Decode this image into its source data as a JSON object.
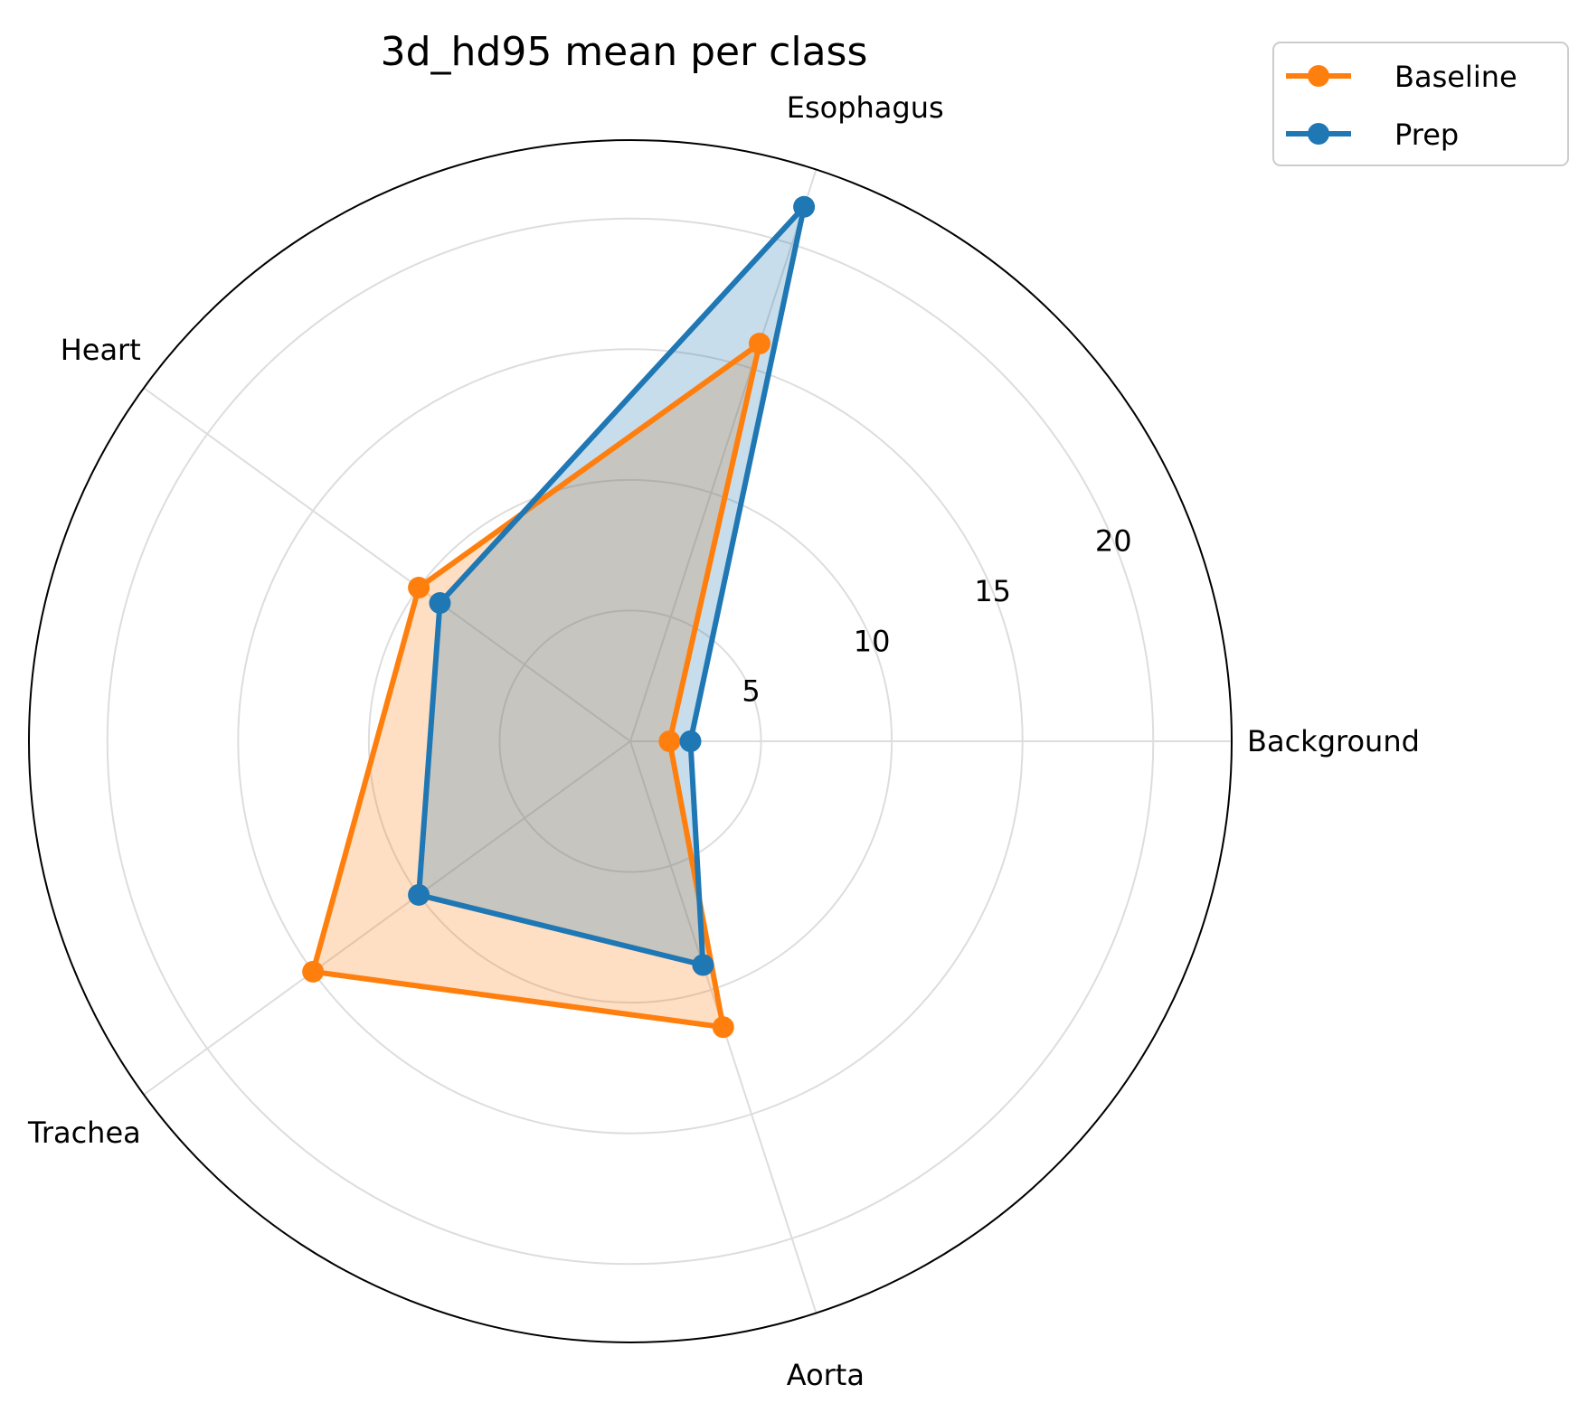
{
  "chart_data": {
    "type": "radar",
    "title": "3d_hd95 mean per class",
    "categories": [
      "Background",
      "Esophagus",
      "Heart",
      "Trachea",
      "Aorta"
    ],
    "series": [
      {
        "name": "Baseline",
        "color": "#ff7f0e",
        "values": [
          1.5,
          16.0,
          10.0,
          15.0,
          11.5
        ]
      },
      {
        "name": "Prep",
        "color": "#1f77b4",
        "values": [
          2.3,
          21.5,
          9.0,
          10.0,
          9.0
        ]
      }
    ],
    "r_ticks": [
      5,
      10,
      15,
      20
    ],
    "r_tick_labels": [
      "5",
      "10",
      "15",
      "20"
    ],
    "rlim": [
      0,
      23
    ],
    "grid": true,
    "legend_position": "top-right"
  }
}
